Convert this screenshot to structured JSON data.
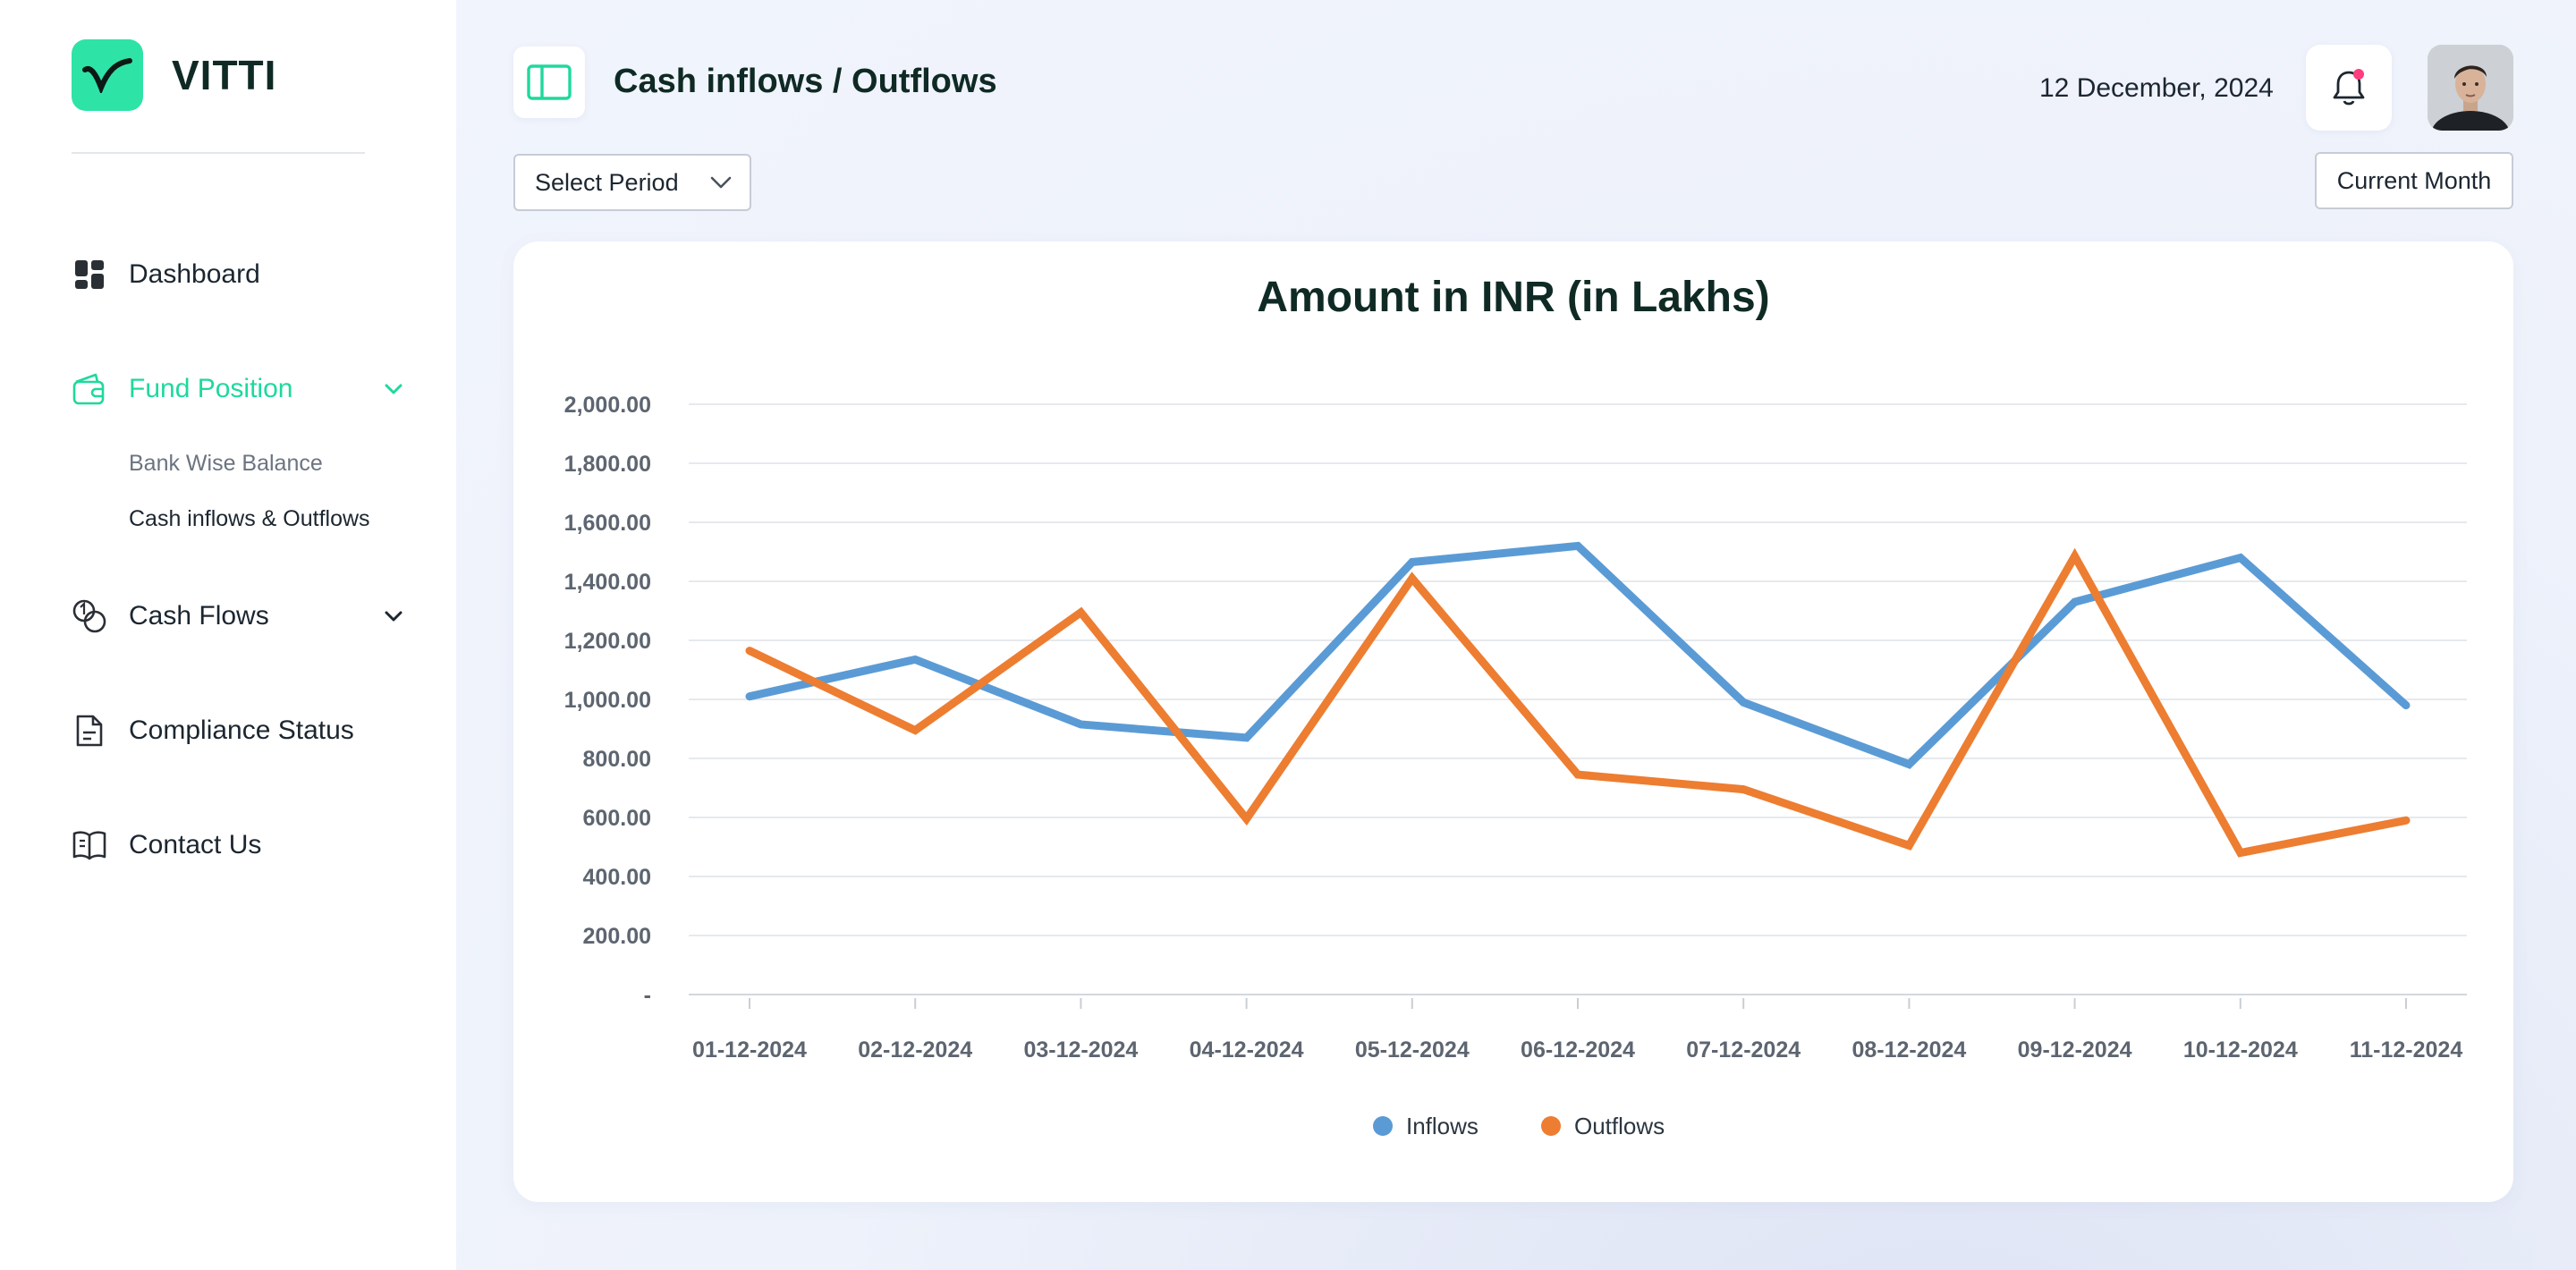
{
  "sidebar": {
    "brand": "VITTI",
    "nav": [
      {
        "label": "Dashboard",
        "icon": "dashboard-icon"
      },
      {
        "label": "Fund Position",
        "icon": "wallet-icon",
        "active": true
      },
      {
        "label": "Cash Flows",
        "icon": "coins-icon"
      },
      {
        "label": "Compliance Status",
        "icon": "document-icon"
      },
      {
        "label": "Contact Us",
        "icon": "book-icon"
      }
    ],
    "sub_items": [
      "Bank Wise Balance",
      "Cash inflows & Outflows"
    ]
  },
  "header": {
    "title": "Cash inflows / Outflows",
    "date": "12 December, 2024"
  },
  "filters": {
    "period_select": "Select Period",
    "current_month": "Current Month"
  },
  "colors": {
    "accent": "#1ed99c",
    "inflows": "#5b9bd5",
    "outflows": "#ed7d31",
    "notification_dot": "#ff3d7f"
  },
  "chart_data": {
    "type": "line",
    "title": "Amount in INR (in Lakhs)",
    "categories": [
      "01-12-2024",
      "02-12-2024",
      "03-12-2024",
      "04-12-2024",
      "05-12-2024",
      "06-12-2024",
      "07-12-2024",
      "08-12-2024",
      "09-12-2024",
      "10-12-2024",
      "11-12-2024"
    ],
    "y_ticks": [
      "-",
      "200.00",
      "400.00",
      "600.00",
      "800.00",
      "1,000.00",
      "1,200.00",
      "1,400.00",
      "1,600.00",
      "1,800.00",
      "2,000.00"
    ],
    "ylim": [
      0,
      2000
    ],
    "series": [
      {
        "name": "Inflows",
        "color": "#5b9bd5",
        "values": [
          1010,
          1135,
          915,
          870,
          1465,
          1520,
          990,
          780,
          1330,
          1480,
          980
        ]
      },
      {
        "name": "Outflows",
        "color": "#ed7d31",
        "values": [
          1165,
          895,
          1295,
          595,
          1410,
          745,
          695,
          505,
          1485,
          480,
          590
        ]
      }
    ],
    "legend_position": "bottom",
    "grid": true
  }
}
